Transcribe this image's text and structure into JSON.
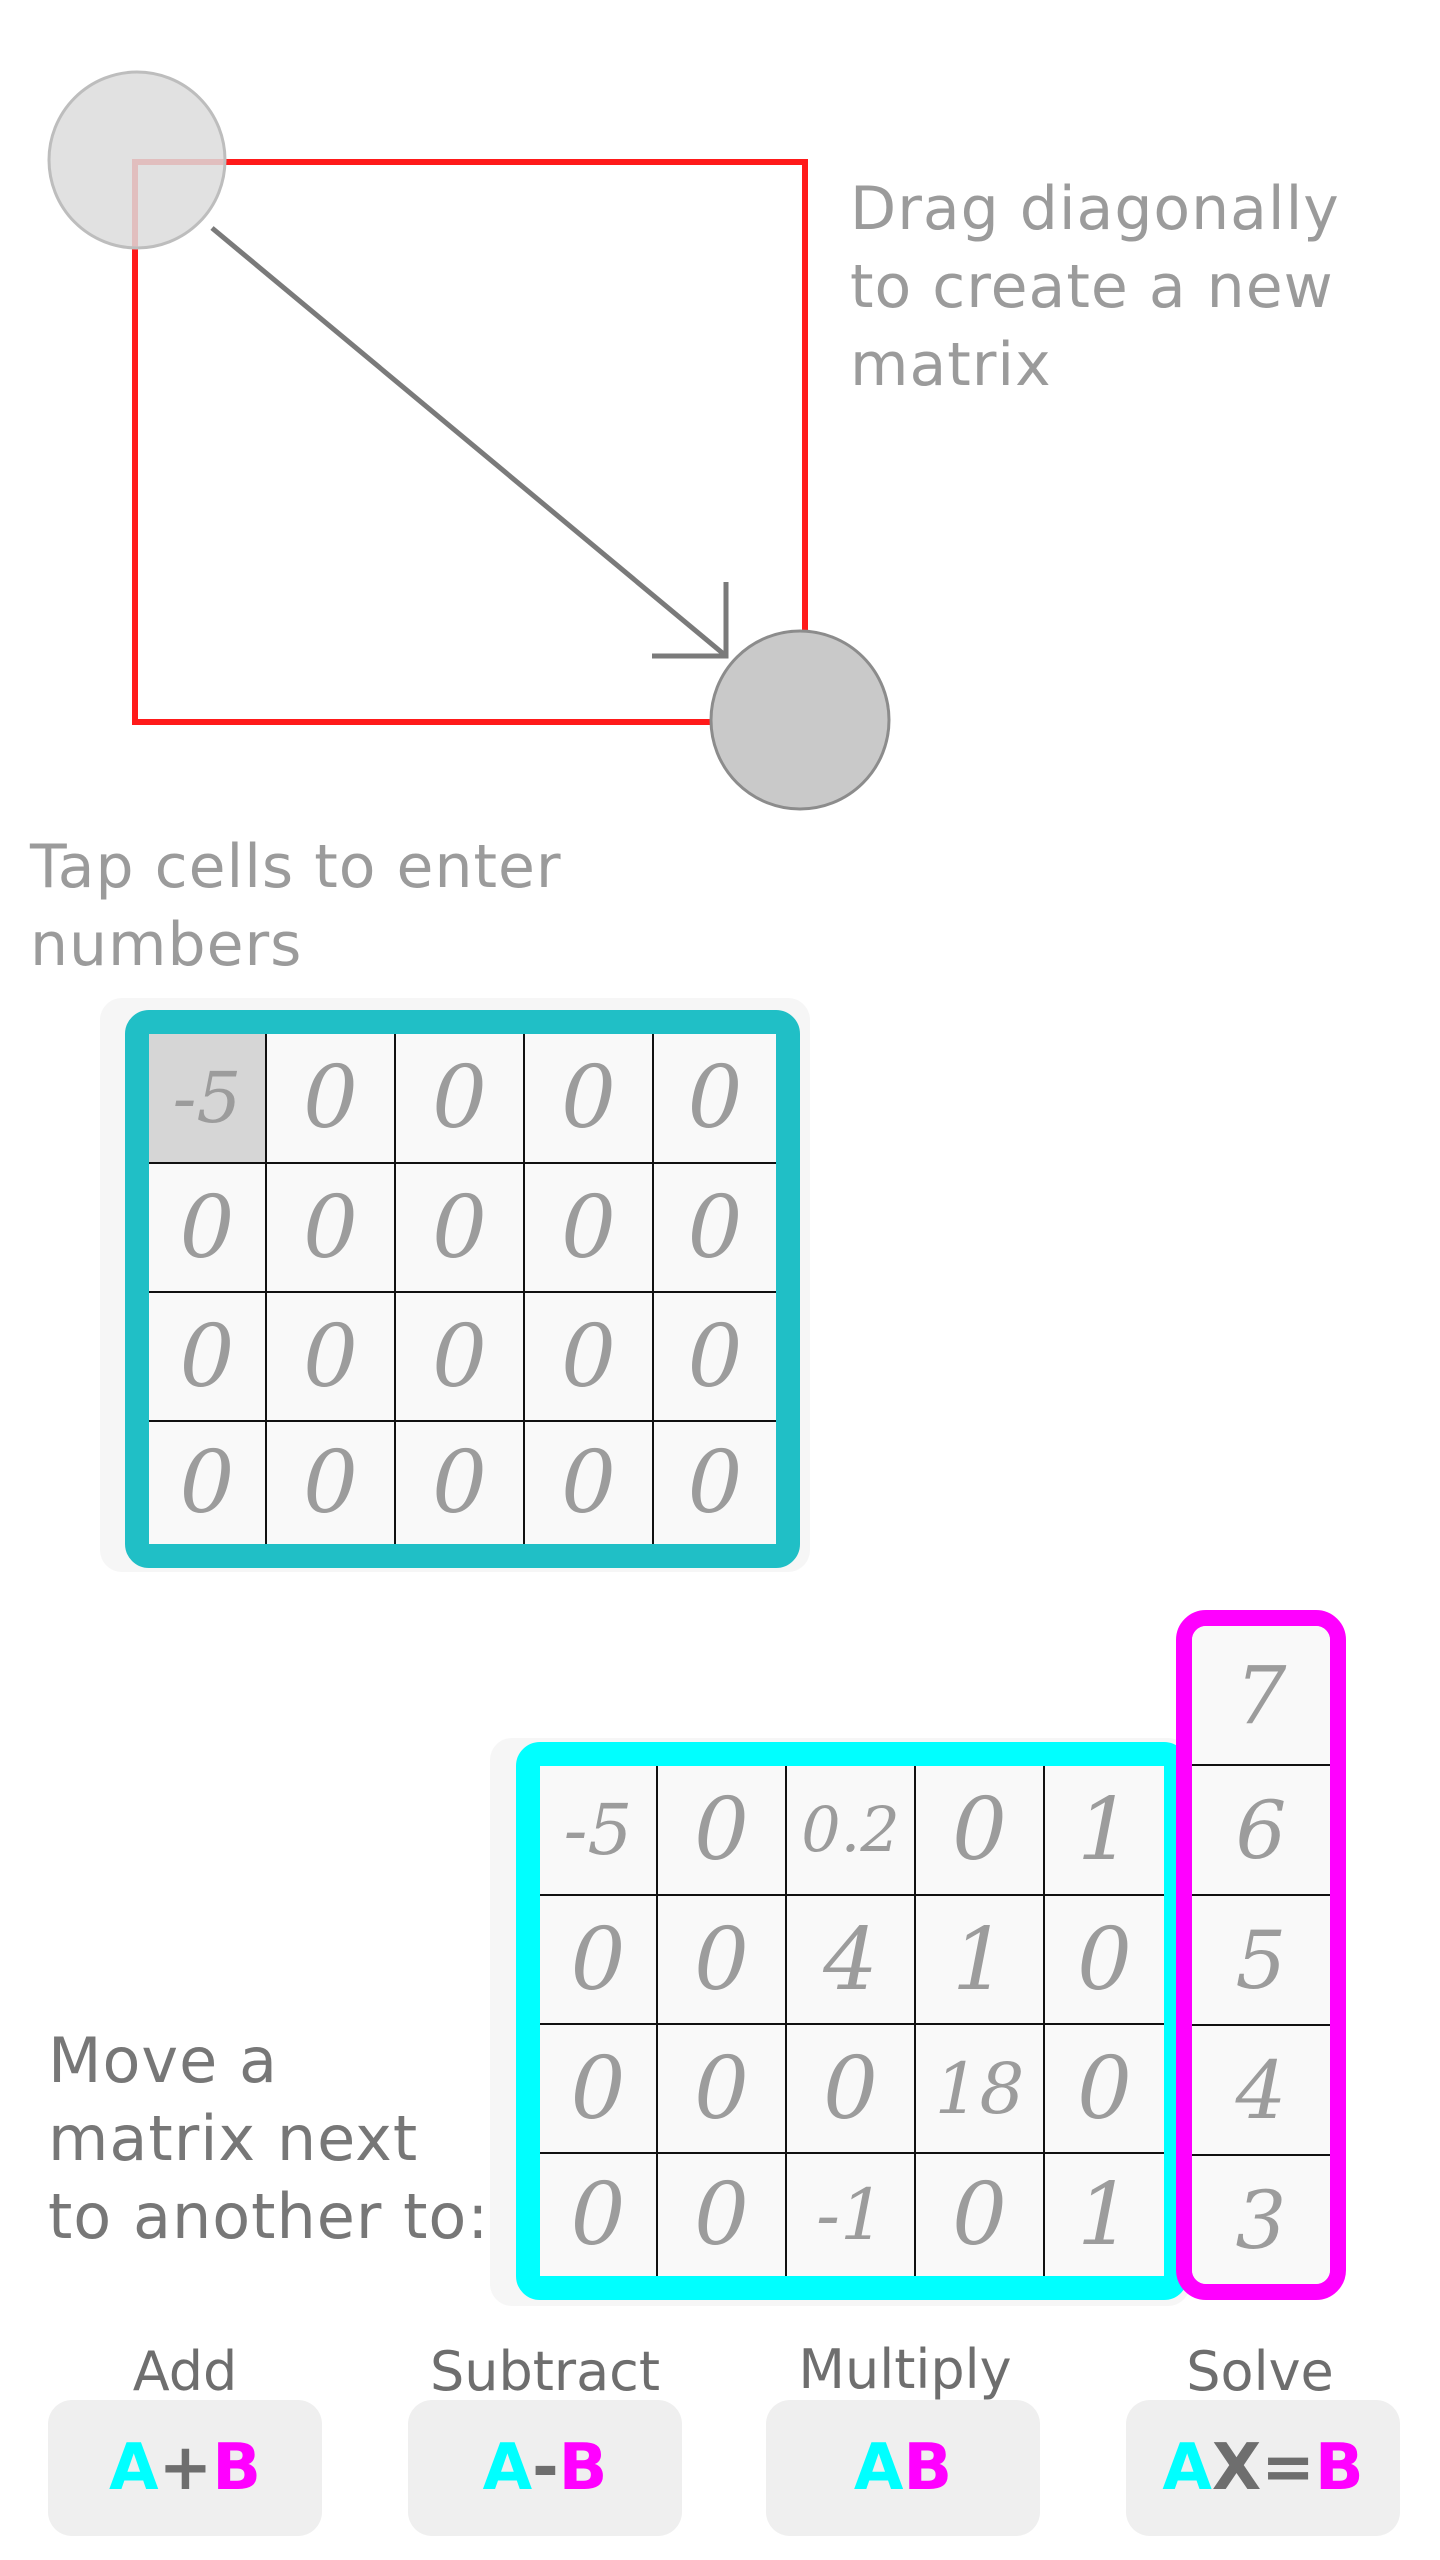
{
  "tutorial": {
    "drag_hint": [
      "Drag diagonally",
      "to create a new",
      "matrix"
    ],
    "tap_hint": [
      "Tap cells to enter",
      "numbers"
    ],
    "move_hint": [
      "Move a",
      "matrix next",
      "to another to:"
    ]
  },
  "colors": {
    "drag_box": "#ff1a1a",
    "matrix_a_border": "#20bfc6",
    "matrix_b_border": "#00ffff",
    "matrix_c_border": "#ff00ff",
    "selected_cell": "#d6d6d6",
    "operand_a": "#00ffff",
    "operand_b": "#ff00ff"
  },
  "matrix_entry": {
    "rows": [
      [
        "-5",
        "0",
        "0",
        "0",
        "0"
      ],
      [
        "0",
        "0",
        "0",
        "0",
        "0"
      ],
      [
        "0",
        "0",
        "0",
        "0",
        "0"
      ],
      [
        "0",
        "0",
        "0",
        "0",
        "0"
      ]
    ],
    "selected": [
      0,
      0
    ]
  },
  "matrix_a": {
    "rows": [
      [
        "-5",
        "0",
        "0.2",
        "0",
        "1"
      ],
      [
        "0",
        "0",
        "4",
        "1",
        "0"
      ],
      [
        "0",
        "0",
        "0",
        "18",
        "0"
      ],
      [
        "0",
        "0",
        "-1",
        "0",
        "1"
      ]
    ]
  },
  "matrix_b": {
    "rows": [
      [
        "7"
      ],
      [
        "6"
      ],
      [
        "5"
      ],
      [
        "4"
      ],
      [
        "3"
      ]
    ]
  },
  "operations": [
    {
      "label": "Add",
      "a": "A",
      "op": "+",
      "b": "B"
    },
    {
      "label": "Subtract",
      "a": "A",
      "op": "-",
      "b": "B"
    },
    {
      "label": "Multiply",
      "a": "A",
      "op": "",
      "b": "B"
    },
    {
      "label": "Solve",
      "a": "A",
      "op": "X=",
      "b": "B"
    }
  ]
}
